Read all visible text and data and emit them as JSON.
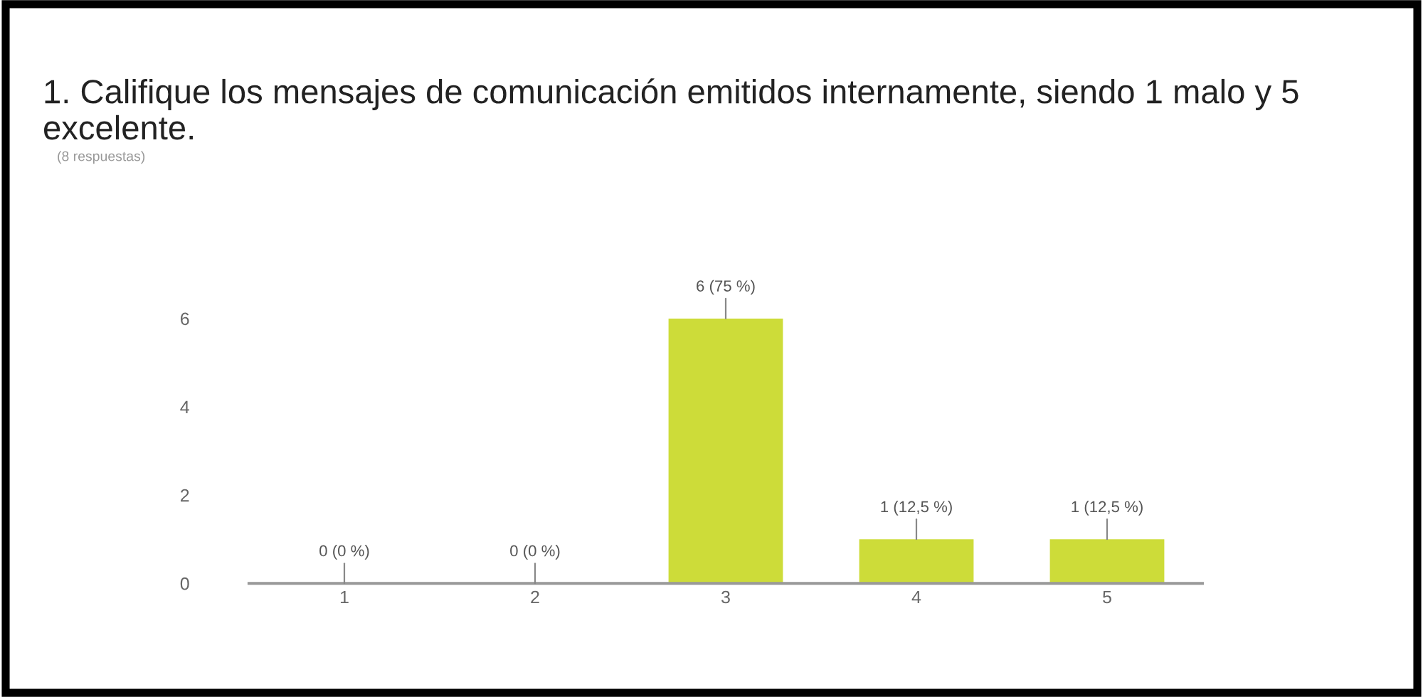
{
  "chart_data": {
    "type": "bar",
    "title": "1. Califique los mensajes de comunicación emitidos internamente, siendo 1 malo y 5 excelente.",
    "subtitle": "(8 respuestas)",
    "categories": [
      "1",
      "2",
      "3",
      "4",
      "5"
    ],
    "values": [
      0,
      0,
      6,
      1,
      1
    ],
    "color": "#cddc39",
    "value_labels": [
      "0 (0 %)",
      "0 (0 %)",
      "6 (75 %)",
      "1 (12,5 %)",
      "1 (12,5 %)"
    ],
    "ylim": [
      0,
      6
    ],
    "yticks": [
      0,
      2,
      4,
      6
    ],
    "grid": false,
    "legend": false
  }
}
